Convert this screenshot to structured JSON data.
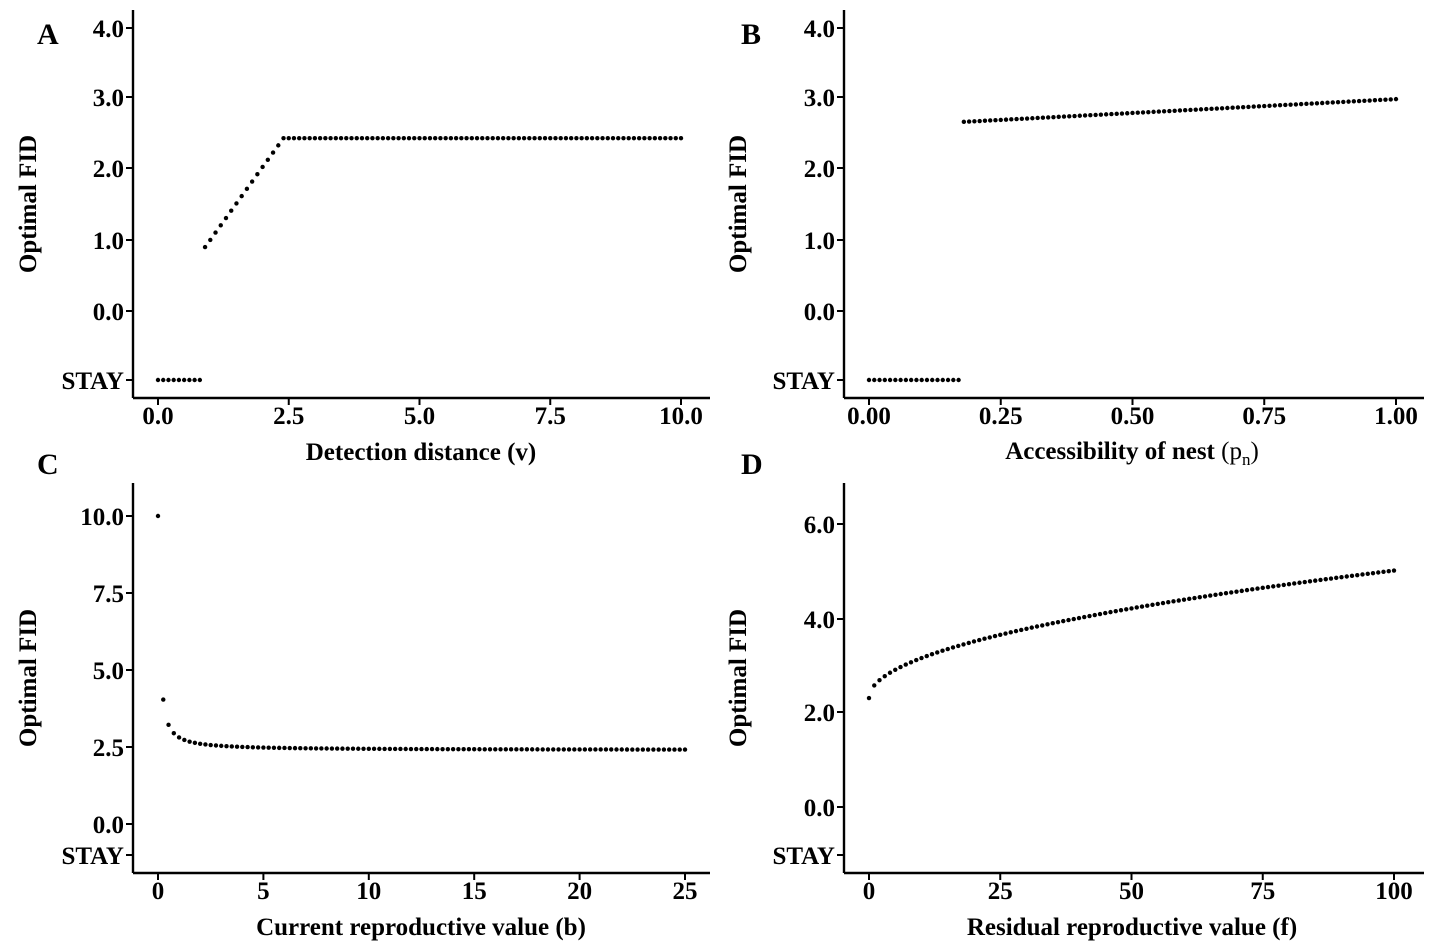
{
  "chart_data": [
    {
      "panel": "A",
      "type": "scatter",
      "xlabel": "Detection distance (v)",
      "ylabel": "Optimal FID",
      "xlim": [
        0,
        10
      ],
      "ylim": [
        -1,
        4
      ],
      "xticks": [
        0,
        2.5,
        5,
        7.5,
        10
      ],
      "xtick_labels": [
        "0.0",
        "2.5",
        "5.0",
        "7.5",
        "10.0"
      ],
      "yticks": [
        -1,
        0,
        1,
        2,
        3,
        4
      ],
      "ytick_labels": [
        "STAY",
        "0.0",
        "1.0",
        "2.0",
        "3.0",
        "4.0"
      ],
      "stay_value": -1,
      "segments": [
        {
          "x_start": 0.0,
          "x_end": 0.8,
          "step": 0.1,
          "y": "STAY"
        },
        {
          "x_start": 0.9,
          "x_end": 2.4,
          "step": 0.1,
          "y_start": 0.9,
          "y_end": 2.42,
          "shape": "linear"
        },
        {
          "x_start": 2.5,
          "x_end": 10.0,
          "step": 0.1,
          "y": 2.42
        }
      ]
    },
    {
      "panel": "B",
      "type": "scatter",
      "xlabel": "Accessibility of nest",
      "xlabel_symbol": "p",
      "xlabel_subscript": "n",
      "ylabel": "Optimal FID",
      "xlim": [
        0,
        1
      ],
      "ylim": [
        -1,
        4
      ],
      "xticks": [
        0,
        0.25,
        0.5,
        0.75,
        1
      ],
      "xtick_labels": [
        "0.00",
        "0.25",
        "0.50",
        "0.75",
        "1.00"
      ],
      "yticks": [
        -1,
        0,
        1,
        2,
        3,
        4
      ],
      "ytick_labels": [
        "STAY",
        "0.0",
        "1.0",
        "2.0",
        "3.0",
        "4.0"
      ],
      "stay_value": -1,
      "segments": [
        {
          "x_start": 0.0,
          "x_end": 0.17,
          "step": 0.01,
          "y": "STAY"
        },
        {
          "x_start": 0.18,
          "x_end": 1.0,
          "step": 0.01,
          "y_start": 2.65,
          "y_end": 2.97,
          "shape": "linear"
        }
      ]
    },
    {
      "panel": "C",
      "type": "scatter",
      "xlabel": "Current reproductive value (b)",
      "ylabel": "Optimal FID",
      "xlim": [
        0,
        25
      ],
      "ylim": [
        -1.2,
        11
      ],
      "xticks": [
        0,
        5,
        10,
        15,
        20,
        25
      ],
      "xtick_labels": [
        "0",
        "5",
        "10",
        "15",
        "20",
        "25"
      ],
      "yticks": [
        -1,
        0,
        2.5,
        5,
        7.5,
        10
      ],
      "ytick_labels": [
        "STAY",
        "0.0",
        "2.5",
        "5.0",
        "7.5",
        "10.0"
      ],
      "stay_value": -1,
      "segments": [
        {
          "x_start": 0.0,
          "x_end": 0.0,
          "step": 1,
          "y": 10.0
        },
        {
          "x_start": 0.25,
          "x_end": 25.0,
          "step": 0.25,
          "shape": "hyperbolic",
          "asymptote": 2.4,
          "k": 0.41
        }
      ]
    },
    {
      "panel": "D",
      "type": "scatter",
      "xlabel": "Residual reproductive value (f)",
      "ylabel": "Optimal FID",
      "xlim": [
        0,
        100
      ],
      "ylim": [
        -1,
        6.8
      ],
      "xticks": [
        0,
        25,
        50,
        75,
        100
      ],
      "xtick_labels": [
        "0",
        "25",
        "50",
        "75",
        "100"
      ],
      "yticks": [
        -1,
        0,
        2,
        4,
        6
      ],
      "ytick_labels": [
        "STAY",
        "0.0",
        "2.0",
        "4.0",
        "6.0"
      ],
      "stay_value": -1,
      "segments": [
        {
          "x_start": 0.0,
          "x_end": 100.0,
          "step": 1,
          "shape": "sqrt",
          "y_start": 2.3,
          "y_end": 5.02
        }
      ]
    }
  ]
}
